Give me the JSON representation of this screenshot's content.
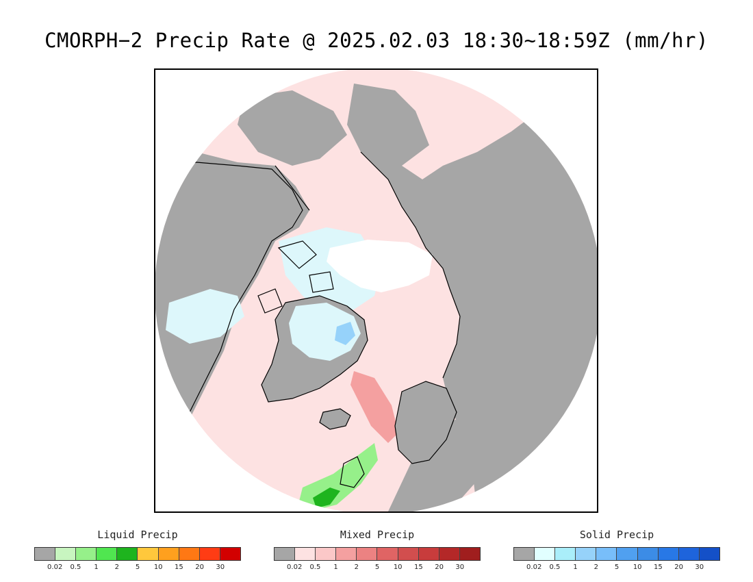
{
  "header": {
    "title": "CMORPH−2 Precip Rate @ 2025.02.03 18:30~18:59Z (mm/hr)"
  },
  "map": {
    "projection": "north-polar-stereographic",
    "colors": {
      "no_data": "#a6a6a6",
      "light_mixed": "#fde2e2",
      "light_solid": "#ddf7fb",
      "clear_core": "#ffffff",
      "coast": "#000000"
    },
    "features": [
      "arctic-ocean-clear-core",
      "greenland-solid-precip",
      "north-atlantic-mixed-precip-band",
      "british-isles-liquid-precip",
      "scandinavia",
      "iceland",
      "north-america",
      "siberia"
    ]
  },
  "legends": [
    {
      "id": "liquid",
      "title": "Liquid Precip",
      "colors": [
        "#a6a6a6",
        "#c8f5c0",
        "#96f08a",
        "#50e650",
        "#1eb41e",
        "#ffc83c",
        "#ffa01e",
        "#ff7814",
        "#ff3c14",
        "#d20000"
      ],
      "ticks": [
        "0.02",
        "0.5",
        "1",
        "2",
        "5",
        "10",
        "15",
        "20",
        "30"
      ]
    },
    {
      "id": "mixed",
      "title": "Mixed Precip",
      "colors": [
        "#a6a6a6",
        "#fde2e2",
        "#fbc8c8",
        "#f4a0a0",
        "#ec8282",
        "#e06464",
        "#d24e4e",
        "#c83c3c",
        "#b42828",
        "#a01e1e"
      ],
      "ticks": [
        "0.02",
        "0.5",
        "1",
        "2",
        "5",
        "10",
        "15",
        "20",
        "30"
      ]
    },
    {
      "id": "solid",
      "title": "Solid Precip",
      "colors": [
        "#a6a6a6",
        "#e1ffff",
        "#aaeefa",
        "#96d2fa",
        "#78befa",
        "#50a0f0",
        "#3c8ce6",
        "#2878e6",
        "#1e64dc",
        "#1450c8"
      ],
      "ticks": [
        "0.02",
        "0.5",
        "1",
        "2",
        "5",
        "10",
        "15",
        "20",
        "30"
      ]
    }
  ]
}
